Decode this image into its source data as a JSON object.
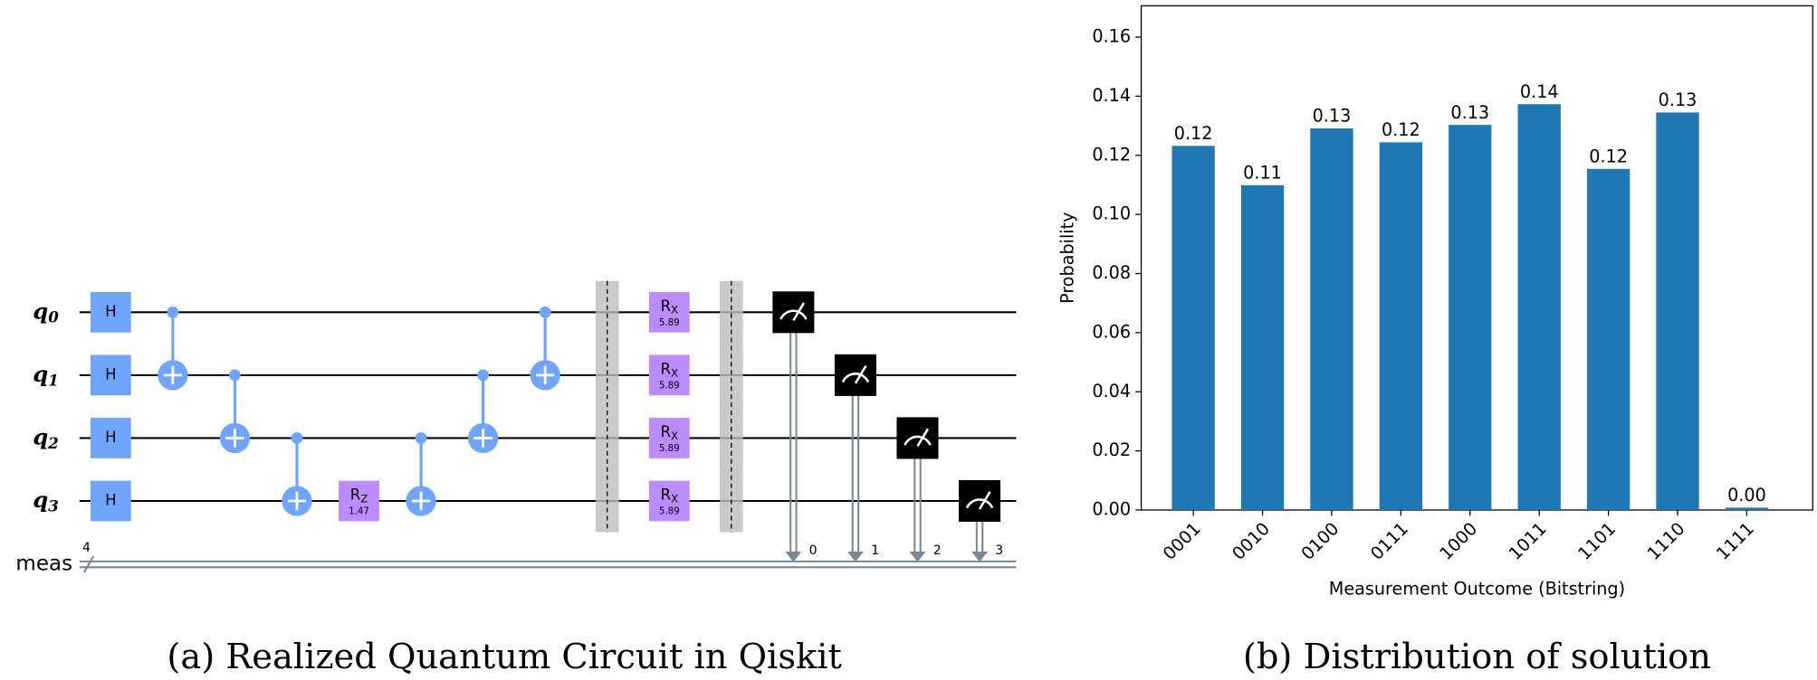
{
  "circuit": {
    "caption": "(a) Realized Quantum Circuit in Qiskit",
    "qubits": [
      {
        "name": "q",
        "sub": "0"
      },
      {
        "name": "q",
        "sub": "1"
      },
      {
        "name": "q",
        "sub": "2"
      },
      {
        "name": "q",
        "sub": "3"
      }
    ],
    "creg": {
      "name": "meas",
      "size": "4"
    },
    "moments": [
      [
        {
          "type": "h",
          "label": "H",
          "qubit": 0
        },
        {
          "type": "h",
          "label": "H",
          "qubit": 1
        },
        {
          "type": "h",
          "label": "H",
          "qubit": 2
        },
        {
          "type": "h",
          "label": "H",
          "qubit": 3
        }
      ],
      [
        {
          "type": "cx",
          "control": 0,
          "target": 1
        }
      ],
      [
        {
          "type": "cx",
          "control": 1,
          "target": 2
        }
      ],
      [
        {
          "type": "cx",
          "control": 2,
          "target": 3
        }
      ],
      [
        {
          "type": "rot",
          "label": "R",
          "sub": "Z",
          "param": "1.47",
          "qubit": 3
        }
      ],
      [
        {
          "type": "cx",
          "control": 2,
          "target": 3
        }
      ],
      [
        {
          "type": "cx",
          "control": 1,
          "target": 2
        }
      ],
      [
        {
          "type": "cx",
          "control": 0,
          "target": 1
        }
      ],
      [
        {
          "type": "barrier"
        }
      ],
      [
        {
          "type": "rot",
          "label": "R",
          "sub": "X",
          "param": "5.89",
          "qubit": 0
        },
        {
          "type": "rot",
          "label": "R",
          "sub": "X",
          "param": "5.89",
          "qubit": 1
        },
        {
          "type": "rot",
          "label": "R",
          "sub": "X",
          "param": "5.89",
          "qubit": 2
        },
        {
          "type": "rot",
          "label": "R",
          "sub": "X",
          "param": "5.89",
          "qubit": 3
        }
      ],
      [
        {
          "type": "barrier"
        }
      ],
      [
        {
          "type": "measure",
          "qubit": 0,
          "bit": "0"
        }
      ],
      [
        {
          "type": "measure",
          "qubit": 1,
          "bit": "1"
        }
      ],
      [
        {
          "type": "measure",
          "qubit": 2,
          "bit": "2"
        }
      ],
      [
        {
          "type": "measure",
          "qubit": 3,
          "bit": "3"
        }
      ]
    ]
  },
  "chart_data": {
    "type": "bar",
    "caption": "(b) Distribution of solution",
    "x_label": "Measurement Outcome (Bitstring)",
    "y_label": "Probability",
    "categories": [
      "0001",
      "0010",
      "0100",
      "0111",
      "1000",
      "1011",
      "1101",
      "1110",
      "1111"
    ],
    "values": [
      0.1232,
      0.1099,
      0.1291,
      0.1244,
      0.1303,
      0.1373,
      0.1154,
      0.1345,
      0.0008
    ],
    "value_labels": [
      "0.12",
      "0.11",
      "0.13",
      "0.12",
      "0.13",
      "0.14",
      "0.12",
      "0.13",
      "0.00"
    ],
    "color": "#1f77b4",
    "ylim": [
      0,
      0.1706
    ],
    "yticks": [
      {
        "value": 0,
        "label": "0.00"
      },
      {
        "value": 0.02,
        "label": "0.02"
      },
      {
        "value": 0.04,
        "label": "0.04"
      },
      {
        "value": 0.06,
        "label": "0.06"
      },
      {
        "value": 0.08,
        "label": "0.08"
      },
      {
        "value": 0.1,
        "label": "0.10"
      },
      {
        "value": 0.12,
        "label": "0.12"
      },
      {
        "value": 0.14,
        "label": "0.14"
      },
      {
        "value": 0.16,
        "label": "0.16"
      }
    ],
    "grid": false
  }
}
